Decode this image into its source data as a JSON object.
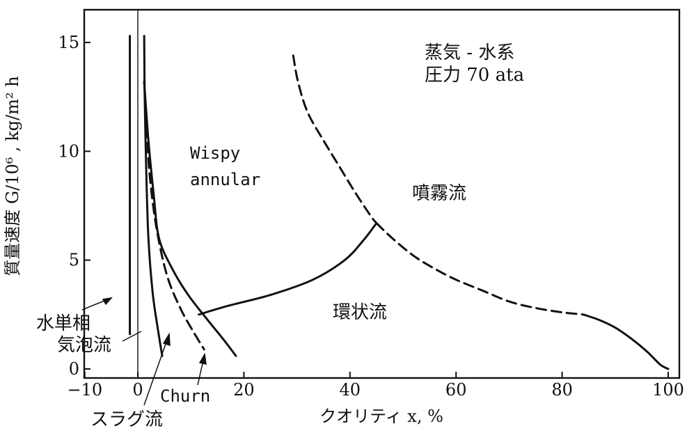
{
  "chart_data": {
    "type": "line",
    "title": "",
    "xlabel": "クオリティ x,  %",
    "ylabel": "質量速度 G/10⁶ ,  kg/m² h",
    "xlim": [
      -10,
      100
    ],
    "ylim": [
      0,
      16
    ],
    "x_ticks": [
      -10,
      0,
      20,
      40,
      60,
      80,
      100
    ],
    "x_tick_labels": [
      "−10",
      "0",
      "20",
      "40",
      "60",
      "80",
      "100"
    ],
    "y_ticks": [
      0,
      5,
      10,
      15
    ],
    "y_tick_labels": [
      "0",
      "5",
      "10",
      "15"
    ],
    "grid": false,
    "legend": "none",
    "annotations": [
      {
        "text": "蒸気 - 水系"
      },
      {
        "text": "圧力 70 ata"
      },
      {
        "text": "Wispy"
      },
      {
        "text": "annular"
      },
      {
        "text": "噴霧流"
      },
      {
        "text": "環状流"
      },
      {
        "text": "水単相"
      },
      {
        "text": "気泡流"
      },
      {
        "text": "スラグ流"
      },
      {
        "text": "Churn"
      }
    ],
    "series": [
      {
        "style": "solid",
        "points": [
          [
            -1.5,
            15.3
          ],
          [
            -1.5,
            1.6
          ]
        ]
      },
      {
        "style": "solid",
        "points": [
          [
            1.2,
            15.3
          ],
          [
            1.3,
            12.5
          ],
          [
            1.6,
            9.0
          ],
          [
            2.0,
            6.0
          ],
          [
            2.8,
            3.5
          ],
          [
            3.8,
            1.8
          ],
          [
            4.6,
            0.6
          ]
        ]
      },
      {
        "style": "dashed",
        "points": [
          [
            1.2,
            13.2
          ],
          [
            1.6,
            11.5
          ],
          [
            2.2,
            9.0
          ],
          [
            3.5,
            6.5
          ],
          [
            5.5,
            4.3
          ],
          [
            8.0,
            2.8
          ],
          [
            10.5,
            1.7
          ],
          [
            12.5,
            0.9
          ]
        ]
      },
      {
        "style": "solid",
        "points": [
          [
            1.2,
            13.2
          ],
          [
            2.0,
            10.5
          ],
          [
            3.0,
            8.0
          ],
          [
            4.0,
            6.0
          ],
          [
            6.5,
            4.6
          ],
          [
            9.5,
            3.4
          ],
          [
            13.0,
            2.3
          ],
          [
            16.0,
            1.4
          ],
          [
            18.5,
            0.6
          ]
        ]
      },
      {
        "style": "solid",
        "points": [
          [
            11.5,
            2.5
          ],
          [
            17,
            2.9
          ],
          [
            25,
            3.4
          ],
          [
            33,
            4.1
          ],
          [
            39,
            5.0
          ],
          [
            42.5,
            5.9
          ],
          [
            45.0,
            6.7
          ]
        ]
      },
      {
        "style": "dashed",
        "points": [
          [
            29.3,
            14.4
          ],
          [
            30.2,
            13.2
          ],
          [
            32,
            11.8
          ],
          [
            35,
            10.5
          ],
          [
            38,
            9.3
          ],
          [
            41,
            8.1
          ],
          [
            44,
            7.0
          ],
          [
            45.0,
            6.7
          ]
        ]
      },
      {
        "style": "dashed",
        "points": [
          [
            45.0,
            6.7
          ],
          [
            48,
            6.0
          ],
          [
            52,
            5.2
          ],
          [
            56,
            4.6
          ],
          [
            60,
            4.1
          ],
          [
            65,
            3.6
          ],
          [
            70,
            3.1
          ],
          [
            75,
            2.8
          ],
          [
            80,
            2.6
          ],
          [
            84,
            2.5
          ]
        ]
      },
      {
        "style": "solid",
        "points": [
          [
            84,
            2.5
          ],
          [
            87,
            2.25
          ],
          [
            90,
            1.9
          ],
          [
            93,
            1.4
          ],
          [
            96,
            0.8
          ],
          [
            98.5,
            0.2
          ],
          [
            100,
            0.0
          ]
        ]
      }
    ]
  }
}
